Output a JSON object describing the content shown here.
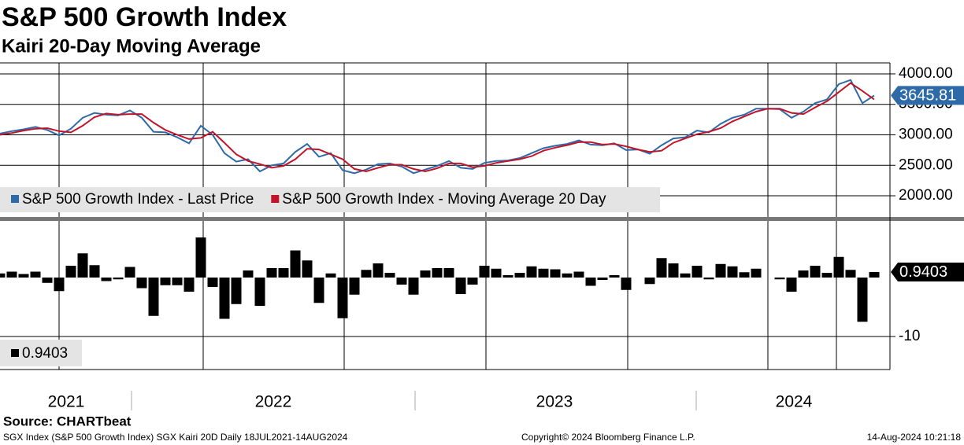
{
  "chart_data": [
    {
      "type": "line",
      "title": "S&P 500 Growth Index",
      "subtitle": "Kairi 20-Day Moving Average",
      "categories": [
        null,
        null,
        null,
        null,
        null,
        null,
        null,
        null,
        null,
        null,
        null,
        null,
        null,
        null,
        null,
        null,
        null,
        null,
        null,
        null,
        null,
        null,
        null,
        null,
        null,
        null,
        null,
        null,
        null,
        null,
        null,
        null,
        null,
        null,
        null,
        null,
        null,
        null,
        null,
        null,
        null,
        null,
        null,
        null,
        null,
        null,
        null,
        null,
        null,
        null,
        null,
        null,
        null,
        null,
        null,
        null,
        null,
        null,
        null,
        null,
        null,
        null,
        null,
        null,
        null,
        null,
        null,
        null,
        null,
        null,
        null,
        null,
        null,
        null,
        null
      ],
      "series": [
        {
          "name": "S&P 500 Growth Index - Last Price",
          "color": "#2e6aa8",
          "values": [
            3020,
            3060,
            3090,
            3130,
            3080,
            2990,
            3100,
            3280,
            3360,
            3330,
            3320,
            3400,
            3280,
            3050,
            3040,
            2960,
            2860,
            3150,
            3000,
            2700,
            2560,
            2600,
            2400,
            2500,
            2530,
            2720,
            2850,
            2640,
            2700,
            2420,
            2370,
            2430,
            2520,
            2530,
            2480,
            2370,
            2430,
            2490,
            2570,
            2460,
            2440,
            2540,
            2570,
            2580,
            2620,
            2700,
            2780,
            2820,
            2850,
            2910,
            2840,
            2830,
            2860,
            2750,
            2760,
            2690,
            2830,
            2940,
            2960,
            3070,
            3040,
            3180,
            3280,
            3330,
            3430,
            3430,
            3420,
            3280,
            3380,
            3520,
            3580,
            3830,
            3900,
            3520,
            3645.81
          ]
        },
        {
          "name": "S&P 500 Growth Index - Moving Average 20 Day",
          "color": "#c0142a",
          "values": [
            3000,
            3030,
            3070,
            3100,
            3110,
            3060,
            3040,
            3150,
            3290,
            3350,
            3330,
            3340,
            3340,
            3200,
            3080,
            3000,
            2930,
            2950,
            3050,
            2870,
            2680,
            2570,
            2520,
            2460,
            2490,
            2600,
            2770,
            2760,
            2680,
            2600,
            2440,
            2400,
            2460,
            2510,
            2510,
            2440,
            2400,
            2450,
            2530,
            2530,
            2470,
            2490,
            2540,
            2570,
            2600,
            2650,
            2740,
            2790,
            2830,
            2880,
            2880,
            2840,
            2850,
            2810,
            2760,
            2720,
            2740,
            2870,
            2940,
            3010,
            3050,
            3110,
            3220,
            3300,
            3380,
            3430,
            3430,
            3360,
            3340,
            3450,
            3550,
            3700,
            3850,
            3720,
            3580
          ]
        }
      ],
      "ylim": [
        1665,
        4180
      ],
      "yticks": [
        {
          "value": 2000,
          "label": "2000.00"
        },
        {
          "value": 2500,
          "label": "2500.00"
        },
        {
          "value": 3000,
          "label": "3000.00"
        },
        {
          "value": 3500,
          "label": "3500.00"
        },
        {
          "value": 4000,
          "label": "4000.00"
        }
      ],
      "grid": true
    },
    {
      "type": "bar",
      "categories": [
        null,
        null,
        null,
        null,
        null,
        null,
        null,
        null,
        null,
        null,
        null,
        null,
        null,
        null,
        null,
        null,
        null,
        null,
        null,
        null,
        null,
        null,
        null,
        null,
        null,
        null,
        null,
        null,
        null,
        null,
        null,
        null,
        null,
        null,
        null,
        null,
        null,
        null,
        null,
        null,
        null,
        null,
        null,
        null,
        null,
        null,
        null,
        null,
        null,
        null,
        null,
        null,
        null,
        null,
        null,
        null,
        null,
        null,
        null,
        null,
        null,
        null,
        null,
        null,
        null,
        null,
        null,
        null,
        null,
        null,
        null,
        null,
        null,
        null,
        null
      ],
      "values": [
        0.7,
        1.0,
        0.6,
        1.0,
        -0.9,
        -2.3,
        2.0,
        4.1,
        2.1,
        -0.6,
        -0.3,
        1.8,
        -1.8,
        -6.5,
        -1.3,
        -1.3,
        -2.4,
        6.8,
        -1.6,
        -7,
        -4.5,
        1.2,
        -4.8,
        1.6,
        1.6,
        4.6,
        2.9,
        -4.3,
        0.7,
        -6.9,
        -2.9,
        1.3,
        2.4,
        0.8,
        -1.2,
        -2.9,
        1.2,
        1.6,
        1.6,
        -2.8,
        -1.2,
        2.0,
        1.5,
        0.4,
        0.8,
        1.9,
        1.5,
        1.4,
        0.7,
        1.0,
        -1.4,
        -0.4,
        0.4,
        -2.1,
        0,
        -1.1,
        3.3,
        2.4,
        0.7,
        2.0,
        -0.3,
        2.3,
        1.9,
        0.9,
        1.5,
        0,
        -0.3,
        -2.4,
        1.2,
        2.0,
        0.8,
        3.5,
        1.3,
        -7.5,
        0.9403
      ],
      "color": "#000000",
      "ylim": [
        -15.6,
        9.47
      ],
      "yticks": [
        -10
      ],
      "grid": true,
      "x_labels": [
        "2021",
        "2022",
        "2023",
        "2024"
      ]
    }
  ],
  "footer": {
    "source": "Source: CHARTbeat",
    "description": "SGX Index (S&P 500 Growth Index) SGX Kairi 20D  Daily 18JUL2021-14AUG2024",
    "copyright": "Copyright© 2024 Bloomberg Finance L.P.",
    "timestamp": "14-Aug-2024 10:21:18"
  }
}
